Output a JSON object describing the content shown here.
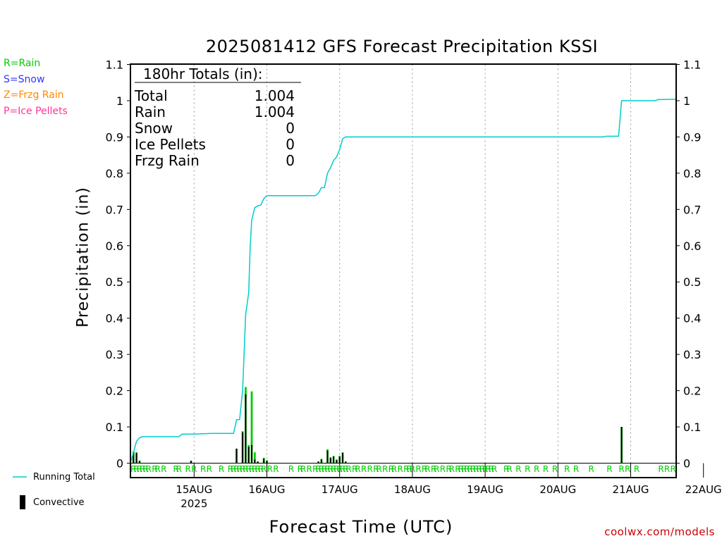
{
  "title": "2025081412 GFS Forecast Precipitation KSSI",
  "legend_types": [
    {
      "text": "R=Rain",
      "color": "#00cc00"
    },
    {
      "text": "S=Snow",
      "color": "#3333ff"
    },
    {
      "text": "Z=Frzg Rain",
      "color": "#ff8800"
    },
    {
      "text": "P=Ice Pellets",
      "color": "#ff3399"
    }
  ],
  "legend_series": {
    "running_total": "Running Total",
    "convective": "Convective"
  },
  "credit": "coolwx.com/models",
  "totals": {
    "header": "180hr Totals (in):",
    "rows": [
      {
        "label": "Total",
        "value": "1.004"
      },
      {
        "label": "Rain",
        "value": "1.004"
      },
      {
        "label": "Snow",
        "value": "0"
      },
      {
        "label": "Ice Pellets",
        "value": "0"
      },
      {
        "label": "Frzg Rain",
        "value": "0"
      }
    ]
  },
  "chart_data": {
    "type": "bar",
    "xlabel": "Forecast Time (UTC)",
    "ylabel": "Precipitation (in)",
    "ylim": [
      0,
      1.1
    ],
    "yticks": [
      0,
      0.1,
      0.2,
      0.3,
      0.4,
      0.5,
      0.6,
      0.7,
      0.8,
      0.9,
      1,
      1.1
    ],
    "yticklabels": [
      "0",
      "0.1",
      "0.2",
      "0.3",
      "0.4",
      "0.5",
      "0.6",
      "0.7",
      "0.8",
      "0.9",
      "1",
      "1.1"
    ],
    "xlim_hours": [
      -9,
      171
    ],
    "x_ticks": [
      {
        "hour": 12,
        "label": "15AUG",
        "sublabel": "2025"
      },
      {
        "hour": 36,
        "label": "16AUG"
      },
      {
        "hour": 60,
        "label": "17AUG"
      },
      {
        "hour": 84,
        "label": "18AUG"
      },
      {
        "hour": 108,
        "label": "19AUG"
      },
      {
        "hour": 132,
        "label": "20AUG"
      },
      {
        "hour": 156,
        "label": "21AUG"
      },
      {
        "hour": 180,
        "label": "22AUG"
      }
    ],
    "grid": "vertical dotted at each day",
    "colors": {
      "running_total": "#00cccc",
      "rain": "#00cc00",
      "convective": "#000000",
      "type_marker": "#00cc00"
    },
    "bars": [
      {
        "hour": -8,
        "total": 0.032,
        "convective": 0.03
      },
      {
        "hour": -7,
        "total": 0.03,
        "convective": 0.028
      },
      {
        "hour": -6,
        "total": 0.007,
        "convective": 0.006
      },
      {
        "hour": 11,
        "total": 0.007,
        "convective": 0.006
      },
      {
        "hour": 26,
        "total": 0.04,
        "convective": 0.04
      },
      {
        "hour": 28,
        "total": 0.088,
        "convective": 0.085
      },
      {
        "hour": 29,
        "total": 0.21,
        "convective": 0.19
      },
      {
        "hour": 30,
        "total": 0.05,
        "convective": 0.045
      },
      {
        "hour": 31,
        "total": 0.198,
        "convective": 0.05
      },
      {
        "hour": 32,
        "total": 0.03,
        "convective": 0.01
      },
      {
        "hour": 33,
        "total": 0.005,
        "convective": 0.004
      },
      {
        "hour": 35,
        "total": 0.015,
        "convective": 0.012
      },
      {
        "hour": 36,
        "total": 0.008,
        "convective": 0.006
      },
      {
        "hour": 53,
        "total": 0.005,
        "convective": 0.004
      },
      {
        "hour": 54,
        "total": 0.012,
        "convective": 0.01
      },
      {
        "hour": 56,
        "total": 0.038,
        "convective": 0.035
      },
      {
        "hour": 57,
        "total": 0.016,
        "convective": 0.015
      },
      {
        "hour": 58,
        "total": 0.02,
        "convective": 0.018
      },
      {
        "hour": 59,
        "total": 0.01,
        "convective": 0.009
      },
      {
        "hour": 60,
        "total": 0.02,
        "convective": 0.018
      },
      {
        "hour": 61,
        "total": 0.03,
        "convective": 0.028
      },
      {
        "hour": 62,
        "total": 0.005,
        "convective": 0.004
      },
      {
        "hour": 153,
        "total": 0.1,
        "convective": 0.1
      }
    ],
    "running_total": [
      [
        -9,
        0
      ],
      [
        -8,
        0.03
      ],
      [
        -7,
        0.06
      ],
      [
        -6,
        0.07
      ],
      [
        -5,
        0.073
      ],
      [
        0,
        0.073
      ],
      [
        5,
        0.073
      ],
      [
        7,
        0.073
      ],
      [
        8,
        0.08
      ],
      [
        12,
        0.08
      ],
      [
        15,
        0.081
      ],
      [
        18,
        0.082
      ],
      [
        23,
        0.082
      ],
      [
        25,
        0.082
      ],
      [
        26,
        0.12
      ],
      [
        27,
        0.12
      ],
      [
        28,
        0.2
      ],
      [
        29,
        0.41
      ],
      [
        30,
        0.47
      ],
      [
        30.5,
        0.6
      ],
      [
        31,
        0.67
      ],
      [
        32,
        0.705
      ],
      [
        33,
        0.71
      ],
      [
        34,
        0.712
      ],
      [
        35,
        0.73
      ],
      [
        36,
        0.738
      ],
      [
        40,
        0.738
      ],
      [
        45,
        0.738
      ],
      [
        52,
        0.738
      ],
      [
        53,
        0.745
      ],
      [
        54,
        0.76
      ],
      [
        55,
        0.76
      ],
      [
        56,
        0.8
      ],
      [
        57,
        0.815
      ],
      [
        58,
        0.835
      ],
      [
        59,
        0.845
      ],
      [
        60,
        0.865
      ],
      [
        61,
        0.895
      ],
      [
        62,
        0.9
      ],
      [
        70,
        0.9
      ],
      [
        100,
        0.9
      ],
      [
        140,
        0.9
      ],
      [
        147,
        0.9
      ],
      [
        148,
        0.902
      ],
      [
        152,
        0.902
      ],
      [
        153,
        1.0
      ],
      [
        160,
        1.0
      ],
      [
        164,
        1.0
      ],
      [
        165,
        1.003
      ],
      [
        171,
        1.004
      ]
    ],
    "type_markers": [
      {
        "hour": -8,
        "type": "R"
      },
      {
        "hour": -7,
        "type": "R"
      },
      {
        "hour": -6,
        "type": "R"
      },
      {
        "hour": -5,
        "type": "R"
      },
      {
        "hour": -4,
        "type": "R"
      },
      {
        "hour": -3,
        "type": "R"
      },
      {
        "hour": -1,
        "type": "R"
      },
      {
        "hour": 0,
        "type": "R"
      },
      {
        "hour": 2,
        "type": "R"
      },
      {
        "hour": 6,
        "type": "R"
      },
      {
        "hour": 7,
        "type": "R"
      },
      {
        "hour": 10,
        "type": "R"
      },
      {
        "hour": 12,
        "type": "R"
      },
      {
        "hour": 15,
        "type": "R"
      },
      {
        "hour": 17,
        "type": "R"
      },
      {
        "hour": 21,
        "type": "R"
      },
      {
        "hour": 24,
        "type": "R"
      },
      {
        "hour": 25,
        "type": "R"
      },
      {
        "hour": 26,
        "type": "R"
      },
      {
        "hour": 27,
        "type": "R"
      },
      {
        "hour": 28,
        "type": "R"
      },
      {
        "hour": 29,
        "type": "R"
      },
      {
        "hour": 30,
        "type": "R"
      },
      {
        "hour": 31,
        "type": "R"
      },
      {
        "hour": 32,
        "type": "R"
      },
      {
        "hour": 33,
        "type": "R"
      },
      {
        "hour": 34,
        "type": "R"
      },
      {
        "hour": 35,
        "type": "R"
      },
      {
        "hour": 37,
        "type": "R"
      },
      {
        "hour": 39,
        "type": "R"
      },
      {
        "hour": 44,
        "type": "R"
      },
      {
        "hour": 47,
        "type": "R"
      },
      {
        "hour": 48,
        "type": "R"
      },
      {
        "hour": 50,
        "type": "R"
      },
      {
        "hour": 52,
        "type": "R"
      },
      {
        "hour": 53,
        "type": "R"
      },
      {
        "hour": 54,
        "type": "R"
      },
      {
        "hour": 55,
        "type": "R"
      },
      {
        "hour": 56,
        "type": "R"
      },
      {
        "hour": 57,
        "type": "R"
      },
      {
        "hour": 58,
        "type": "R"
      },
      {
        "hour": 59,
        "type": "R"
      },
      {
        "hour": 60,
        "type": "R"
      },
      {
        "hour": 61,
        "type": "R"
      },
      {
        "hour": 62,
        "type": "R"
      },
      {
        "hour": 63,
        "type": "R"
      },
      {
        "hour": 65,
        "type": "R"
      },
      {
        "hour": 66,
        "type": "R"
      },
      {
        "hour": 68,
        "type": "R"
      },
      {
        "hour": 70,
        "type": "R"
      },
      {
        "hour": 72,
        "type": "R"
      },
      {
        "hour": 73,
        "type": "R"
      },
      {
        "hour": 75,
        "type": "R"
      },
      {
        "hour": 77,
        "type": "R"
      },
      {
        "hour": 78,
        "type": "R"
      },
      {
        "hour": 80,
        "type": "R"
      },
      {
        "hour": 82,
        "type": "R"
      },
      {
        "hour": 83,
        "type": "R"
      },
      {
        "hour": 84,
        "type": "R"
      },
      {
        "hour": 86,
        "type": "R"
      },
      {
        "hour": 88,
        "type": "R"
      },
      {
        "hour": 89,
        "type": "R"
      },
      {
        "hour": 91,
        "type": "R"
      },
      {
        "hour": 92,
        "type": "R"
      },
      {
        "hour": 94,
        "type": "R"
      },
      {
        "hour": 96,
        "type": "R"
      },
      {
        "hour": 97,
        "type": "R"
      },
      {
        "hour": 99,
        "type": "R"
      },
      {
        "hour": 100,
        "type": "R"
      },
      {
        "hour": 101,
        "type": "R"
      },
      {
        "hour": 102,
        "type": "R"
      },
      {
        "hour": 103,
        "type": "R"
      },
      {
        "hour": 104,
        "type": "R"
      },
      {
        "hour": 105,
        "type": "R"
      },
      {
        "hour": 106,
        "type": "R"
      },
      {
        "hour": 107,
        "type": "R"
      },
      {
        "hour": 108,
        "type": "R"
      },
      {
        "hour": 109,
        "type": "R"
      },
      {
        "hour": 110,
        "type": "R"
      },
      {
        "hour": 111,
        "type": "R"
      },
      {
        "hour": 115,
        "type": "R"
      },
      {
        "hour": 116,
        "type": "R"
      },
      {
        "hour": 119,
        "type": "R"
      },
      {
        "hour": 122,
        "type": "R"
      },
      {
        "hour": 125,
        "type": "R"
      },
      {
        "hour": 128,
        "type": "R"
      },
      {
        "hour": 131,
        "type": "R"
      },
      {
        "hour": 135,
        "type": "R"
      },
      {
        "hour": 138,
        "type": "R"
      },
      {
        "hour": 143,
        "type": "R"
      },
      {
        "hour": 149,
        "type": "R"
      },
      {
        "hour": 153,
        "type": "R"
      },
      {
        "hour": 155,
        "type": "R"
      },
      {
        "hour": 158,
        "type": "R"
      },
      {
        "hour": 166,
        "type": "R"
      },
      {
        "hour": 168,
        "type": "R"
      },
      {
        "hour": 170,
        "type": "R"
      }
    ]
  }
}
